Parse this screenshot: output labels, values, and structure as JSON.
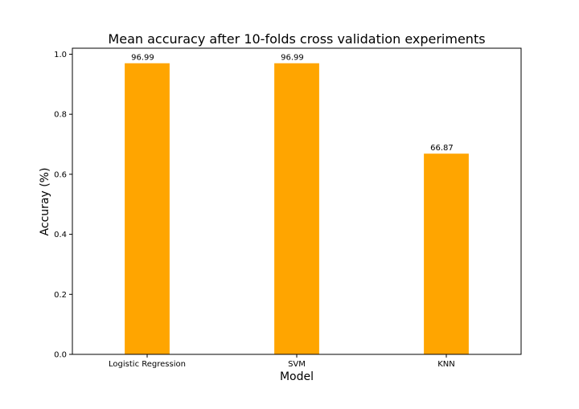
{
  "chart_data": {
    "type": "bar",
    "title": "Mean accuracy after 10-folds cross validation experiments",
    "xlabel": "Model",
    "ylabel": "Accuray (%)",
    "categories": [
      "Logistic Regression",
      "SVM",
      "KNN"
    ],
    "values": [
      0.9699,
      0.9699,
      0.6687
    ],
    "data_labels": [
      "96.99",
      "96.99",
      "66.87"
    ],
    "ylim": [
      0,
      1.02
    ],
    "yticks": [
      0.0,
      0.2,
      0.4,
      0.6,
      0.8,
      1.0
    ],
    "ytick_labels": [
      "0.0",
      "0.2",
      "0.4",
      "0.6",
      "0.8",
      "1.0"
    ],
    "bar_color": "#ffa500",
    "grid": false,
    "legend": "none"
  }
}
